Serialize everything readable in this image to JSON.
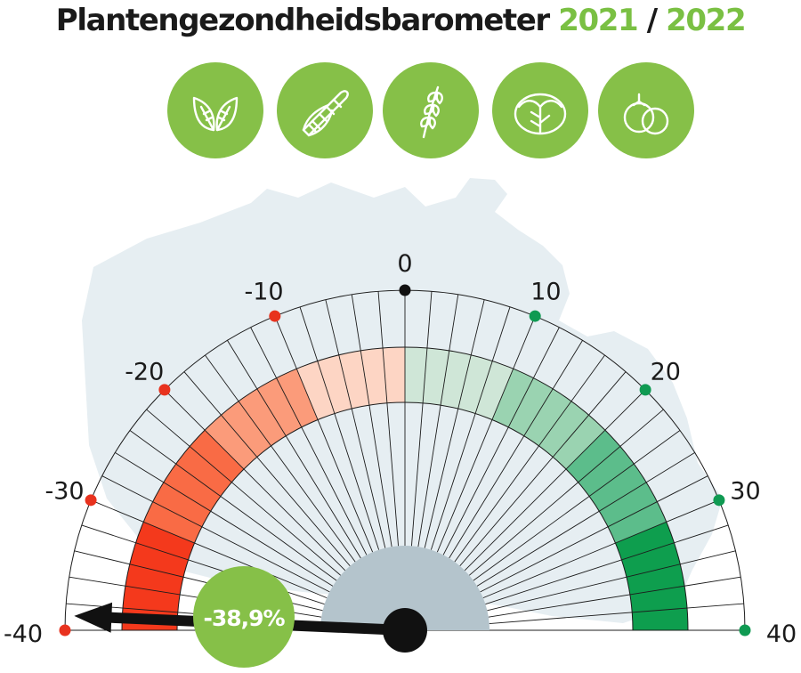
{
  "title": {
    "text": "Plantengezondheidsbarometer",
    "year_start": "2021",
    "separator": "/",
    "year_end": "2022"
  },
  "icons": [
    "leaves-icon",
    "corn-icon",
    "wheat-icon",
    "cabbage-icon",
    "tomato-icon"
  ],
  "colors": {
    "accent_green": "#86c048",
    "negative_dot": "#e8321e",
    "positive_dot": "#0f9a52",
    "needle": "#111111",
    "hub": "#b4c4cc",
    "map": "#e6eef2"
  },
  "chart_data": {
    "type": "gauge",
    "title": "Plantengezondheidsbarometer 2021 / 2022",
    "range": [
      -40,
      40
    ],
    "ticks": [
      -40,
      -30,
      -20,
      -10,
      0,
      10,
      20,
      30,
      40
    ],
    "tick_labels": [
      "-40",
      "-30",
      "-20",
      "-10",
      "0",
      "10",
      "20",
      "30",
      "40"
    ],
    "value": -38.9,
    "value_label": "-38,9%",
    "negative_bands": [
      {
        "from": -40,
        "to": -30,
        "color": "#f4391c"
      },
      {
        "from": -30,
        "to": -20,
        "color": "#f96b45"
      },
      {
        "from": -20,
        "to": -10,
        "color": "#fb9b7a"
      },
      {
        "from": -10,
        "to": 0,
        "color": "#fdd5c4"
      }
    ],
    "positive_bands": [
      {
        "from": 0,
        "to": 10,
        "color": "#cfe6d7"
      },
      {
        "from": 10,
        "to": 20,
        "color": "#9ad3b1"
      },
      {
        "from": 20,
        "to": 30,
        "color": "#5cbd8b"
      },
      {
        "from": 30,
        "to": 40,
        "color": "#0e9e4e"
      }
    ]
  }
}
